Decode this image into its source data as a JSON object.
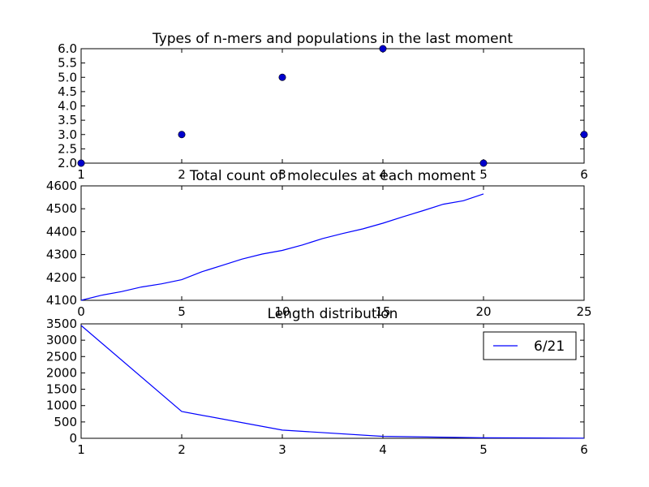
{
  "chart_data": [
    {
      "type": "scatter",
      "title": "Types of n-mers and populations in the last moment",
      "xlim": [
        1,
        6
      ],
      "ylim": [
        2.0,
        6.0
      ],
      "xticks": [
        "1",
        "2",
        "3",
        "4",
        "5",
        "6"
      ],
      "yticks": [
        "2.0",
        "2.5",
        "3.0",
        "3.5",
        "4.0",
        "4.5",
        "5.0",
        "5.5",
        "6.0"
      ],
      "x": [
        1,
        2,
        3,
        4,
        5,
        6
      ],
      "y": [
        2,
        3,
        5,
        6,
        2,
        3
      ],
      "marker_color": "#0000cc"
    },
    {
      "type": "line",
      "title": "Total count of molecules at each moment",
      "xlim": [
        0,
        25
      ],
      "ylim": [
        4100,
        4600
      ],
      "xticks": [
        "0",
        "5",
        "10",
        "15",
        "20",
        "25"
      ],
      "yticks": [
        "4100",
        "4200",
        "4300",
        "4400",
        "4500",
        "4600"
      ],
      "x": [
        0,
        1,
        2,
        3,
        4,
        5,
        6,
        7,
        8,
        9,
        10,
        11,
        12,
        13,
        14,
        15,
        16,
        17,
        18,
        19,
        20
      ],
      "y": [
        4100,
        4122,
        4138,
        4158,
        4172,
        4190,
        4225,
        4252,
        4280,
        4302,
        4318,
        4342,
        4370,
        4392,
        4412,
        4437,
        4465,
        4492,
        4520,
        4535,
        4565
      ],
      "line_color": "#0000ff"
    },
    {
      "type": "line",
      "title": "Length distribution",
      "xlim": [
        1,
        6
      ],
      "ylim": [
        0,
        3500
      ],
      "xticks": [
        "1",
        "2",
        "3",
        "4",
        "5",
        "6"
      ],
      "yticks": [
        "0",
        "500",
        "1000",
        "1500",
        "2000",
        "2500",
        "3000",
        "3500"
      ],
      "series": [
        {
          "name": "6/21",
          "x": [
            1,
            2,
            3,
            4,
            5,
            6
          ],
          "y": [
            3450,
            820,
            250,
            60,
            15,
            5
          ]
        }
      ],
      "legend": "top-right",
      "line_color": "#0000ff"
    }
  ]
}
